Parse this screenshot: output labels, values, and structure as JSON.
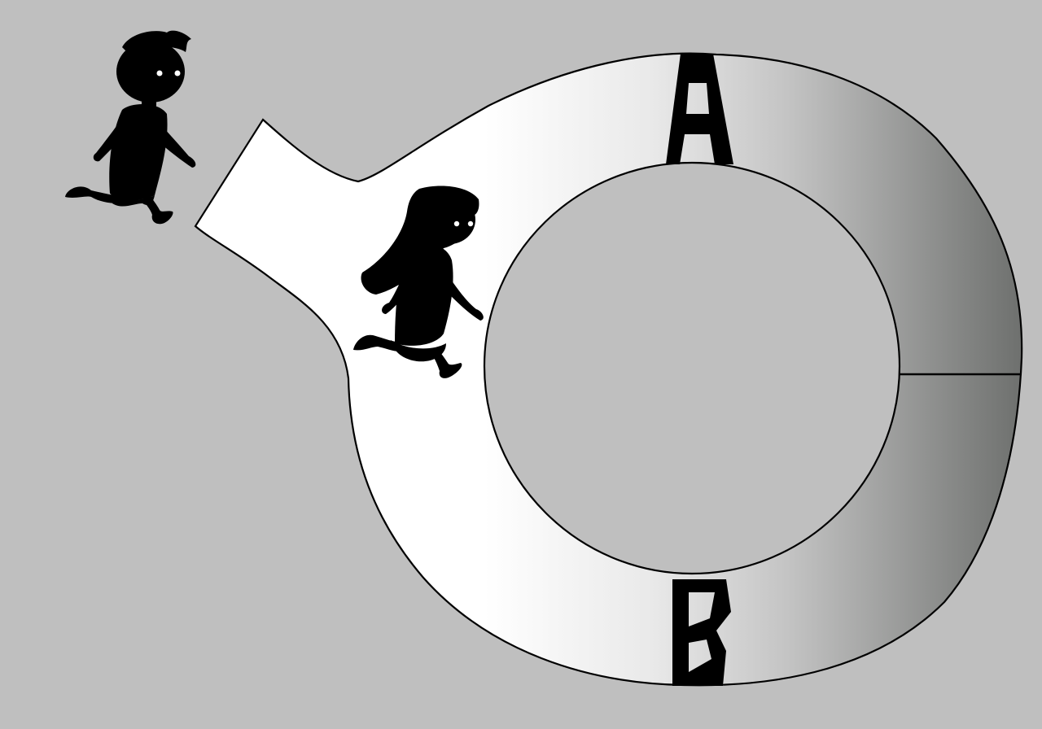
{
  "colors": {
    "background": "#bfbfbf",
    "track_light": "#ffffff",
    "track_dark": "#6e706e",
    "outline": "#000000",
    "silhouette": "#000000",
    "eye": "#ffffff"
  },
  "markers": {
    "a": {
      "label": "A"
    },
    "b": {
      "label": "B"
    }
  },
  "figures": [
    {
      "name": "boy",
      "description_icon": "running-boy-icon"
    },
    {
      "name": "girl",
      "description_icon": "running-girl-icon"
    }
  ]
}
